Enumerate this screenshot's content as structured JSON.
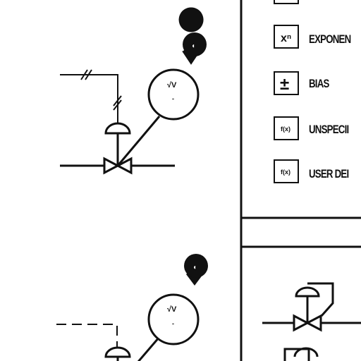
{
  "legend": {
    "items": [
      {
        "glyph": "xⁿ",
        "label": "EXPONEN"
      },
      {
        "glyph": "±",
        "label": "BIAS"
      },
      {
        "glyph": "f(x)",
        "label": "UNSPECII"
      },
      {
        "glyph": "f(x)",
        "label": "USER DEI"
      }
    ]
  },
  "diagrams": [
    {
      "bubble_glyph": "◖",
      "circle_glyph": "√V",
      "circle_sub": "-"
    },
    {
      "bubble_glyph": "◖",
      "circle_glyph": "√V",
      "circle_sub": "-"
    }
  ]
}
